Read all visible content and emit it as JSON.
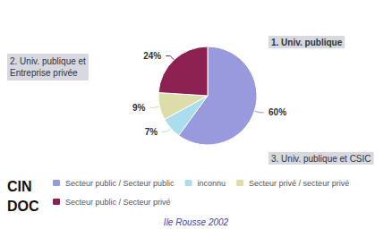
{
  "chart_data": {
    "type": "pie",
    "categories": [
      "Secteur public / Secteur public",
      "inconnu",
      "Secteur privé / secteur privé",
      "Secteur public / Secteur privé"
    ],
    "values": [
      60,
      7,
      9,
      24
    ],
    "colors": [
      "#9999dd",
      "#aaddee",
      "#ddddaa",
      "#8b2252"
    ],
    "data_labels": true,
    "value_labels": [
      "60%",
      "7%",
      "9%",
      "24%"
    ],
    "legend": "lower left",
    "annotations": [
      "1. Univ. publique",
      "3. Univ. publique et CSIC",
      "2. Univ. publique et\nEntreprise privée",
      "Ile Rousse 2002",
      "CIN",
      "DOC"
    ]
  }
}
